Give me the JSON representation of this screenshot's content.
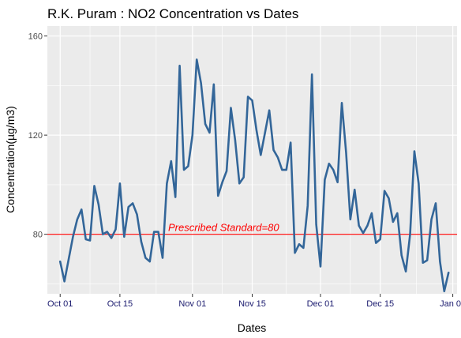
{
  "chart_data": {
    "type": "line",
    "title": "R.K. Puram : NO2 Concentration vs Dates",
    "xlabel": "Dates",
    "ylabel": "Concentration(µg/m3)",
    "xlim": [
      "2017-09-28",
      "2018-01-02"
    ],
    "ylim": [
      56,
      164
    ],
    "x_ticks": [
      {
        "date": "2017-10-01",
        "label": "Oct 01"
      },
      {
        "date": "2017-10-15",
        "label": "Oct 15"
      },
      {
        "date": "2017-11-01",
        "label": "Nov 01"
      },
      {
        "date": "2017-11-15",
        "label": "Nov 15"
      },
      {
        "date": "2017-12-01",
        "label": "Dec 01"
      },
      {
        "date": "2017-12-15",
        "label": "Dec 15"
      },
      {
        "date": "2018-01-01",
        "label": "Jan 01"
      }
    ],
    "y_ticks": [
      80,
      120,
      160
    ],
    "grid": true,
    "reference_line": {
      "value": 80,
      "label": "Prescribed Standard=80",
      "color": "#ff0000"
    },
    "line_color": "#336699",
    "series": [
      {
        "points": [
          [
            "2017-10-01",
            69
          ],
          [
            "2017-10-02",
            61
          ],
          [
            "2017-10-03",
            70
          ],
          [
            "2017-10-04",
            79
          ],
          [
            "2017-10-05",
            86
          ],
          [
            "2017-10-06",
            90
          ],
          [
            "2017-10-07",
            78
          ],
          [
            "2017-10-08",
            77.5
          ],
          [
            "2017-10-09",
            99.5
          ],
          [
            "2017-10-10",
            92
          ],
          [
            "2017-10-11",
            80
          ],
          [
            "2017-10-12",
            81
          ],
          [
            "2017-10-13",
            78.5
          ],
          [
            "2017-10-14",
            82
          ],
          [
            "2017-10-15",
            100.5
          ],
          [
            "2017-10-16",
            79
          ],
          [
            "2017-10-17",
            91
          ],
          [
            "2017-10-18",
            92.5
          ],
          [
            "2017-10-19",
            88
          ],
          [
            "2017-10-20",
            77
          ],
          [
            "2017-10-21",
            70.5
          ],
          [
            "2017-10-22",
            69
          ],
          [
            "2017-10-23",
            81
          ],
          [
            "2017-10-24",
            81
          ],
          [
            "2017-10-25",
            70.5
          ],
          [
            "2017-10-26",
            100.5
          ],
          [
            "2017-10-27",
            109.5
          ],
          [
            "2017-10-28",
            95
          ],
          [
            "2017-10-29",
            148
          ],
          [
            "2017-10-30",
            106
          ],
          [
            "2017-10-31",
            107.5
          ],
          [
            "2017-11-01",
            120
          ],
          [
            "2017-11-02",
            150.5
          ],
          [
            "2017-11-03",
            141
          ],
          [
            "2017-11-04",
            124.5
          ],
          [
            "2017-11-05",
            121
          ],
          [
            "2017-11-06",
            140.5
          ],
          [
            "2017-11-07",
            95.5
          ],
          [
            "2017-11-08",
            101
          ],
          [
            "2017-11-09",
            105.5
          ],
          [
            "2017-11-10",
            131
          ],
          [
            "2017-11-11",
            118
          ],
          [
            "2017-11-12",
            100.5
          ],
          [
            "2017-11-13",
            103
          ],
          [
            "2017-11-14",
            135.5
          ],
          [
            "2017-11-15",
            134
          ],
          [
            "2017-11-16",
            122
          ],
          [
            "2017-11-17",
            112
          ],
          [
            "2017-11-18",
            121
          ],
          [
            "2017-11-19",
            130
          ],
          [
            "2017-11-20",
            114
          ],
          [
            "2017-11-21",
            111
          ],
          [
            "2017-11-22",
            106
          ],
          [
            "2017-11-23",
            106
          ],
          [
            "2017-11-24",
            117
          ],
          [
            "2017-11-25",
            72.5
          ],
          [
            "2017-11-26",
            76
          ],
          [
            "2017-11-27",
            74.5
          ],
          [
            "2017-11-28",
            91.5
          ],
          [
            "2017-11-29",
            144.5
          ],
          [
            "2017-11-30",
            84
          ],
          [
            "2017-12-01",
            67
          ],
          [
            "2017-12-02",
            102
          ],
          [
            "2017-12-03",
            108.5
          ],
          [
            "2017-12-04",
            106
          ],
          [
            "2017-12-05",
            101
          ],
          [
            "2017-12-06",
            133
          ],
          [
            "2017-12-07",
            113
          ],
          [
            "2017-12-08",
            86
          ],
          [
            "2017-12-09",
            98
          ],
          [
            "2017-12-10",
            83.5
          ],
          [
            "2017-12-11",
            80.5
          ],
          [
            "2017-12-12",
            83.5
          ],
          [
            "2017-12-13",
            88.5
          ],
          [
            "2017-12-14",
            76.5
          ],
          [
            "2017-12-15",
            78
          ],
          [
            "2017-12-16",
            97.5
          ],
          [
            "2017-12-17",
            94.5
          ],
          [
            "2017-12-18",
            85
          ],
          [
            "2017-12-19",
            88.5
          ],
          [
            "2017-12-20",
            71.5
          ],
          [
            "2017-12-21",
            65
          ],
          [
            "2017-12-22",
            80
          ],
          [
            "2017-12-23",
            113.5
          ],
          [
            "2017-12-24",
            100.5
          ],
          [
            "2017-12-25",
            68.5
          ],
          [
            "2017-12-26",
            69.5
          ],
          [
            "2017-12-27",
            86
          ],
          [
            "2017-12-28",
            92.5
          ],
          [
            "2017-12-29",
            69
          ],
          [
            "2017-12-30",
            57
          ],
          [
            "2017-12-31",
            64.5
          ]
        ]
      }
    ]
  }
}
